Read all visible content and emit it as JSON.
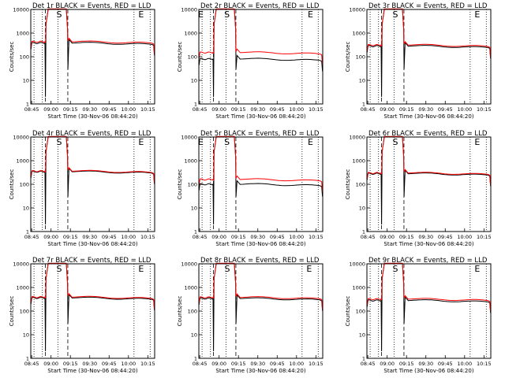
{
  "figure": {
    "xlabel": "Start Time (30-Nov-06 08:44:20)",
    "ylabel": "Counts/sec",
    "x_ticks": [
      "08:45",
      "09:00",
      "09:15",
      "09:30",
      "09:45",
      "10:00",
      "10:15"
    ],
    "y_ticks": [
      "1",
      "10",
      "100",
      "1000",
      "10000"
    ],
    "colors": {
      "events": "#000000",
      "lld": "#ff0000",
      "axes": "#000000",
      "background": "#ffffff"
    }
  },
  "chart_data": [
    {
      "type": "line",
      "title": "Det 1r BLACK = Events, RED = LLD",
      "markers": [
        "S",
        "E"
      ],
      "ylim": [
        1,
        10000
      ],
      "series": [
        {
          "name": "Events",
          "level": 380
        },
        {
          "name": "LLD",
          "level": 430
        }
      ]
    },
    {
      "type": "line",
      "title": "Det 2r BLACK = Events, RED = LLD",
      "markers": [
        "E",
        "S",
        "E"
      ],
      "ylim": [
        1,
        10000
      ],
      "series": [
        {
          "name": "Events",
          "level": 80
        },
        {
          "name": "LLD",
          "level": 150
        }
      ]
    },
    {
      "type": "line",
      "title": "Det 3r BLACK = Events, RED = LLD",
      "markers": [
        "S",
        "E"
      ],
      "ylim": [
        1,
        10000
      ],
      "series": [
        {
          "name": "Events",
          "level": 280
        },
        {
          "name": "LLD",
          "level": 310
        }
      ]
    },
    {
      "type": "line",
      "title": "Det 4r BLACK = Events, RED = LLD",
      "markers": [
        "S",
        "E"
      ],
      "ylim": [
        1,
        10000
      ],
      "series": [
        {
          "name": "Events",
          "level": 340
        },
        {
          "name": "LLD",
          "level": 360
        }
      ]
    },
    {
      "type": "line",
      "title": "Det 5r BLACK = Events, RED = LLD",
      "markers": [
        "E",
        "S",
        "E"
      ],
      "ylim": [
        1,
        10000
      ],
      "series": [
        {
          "name": "Events",
          "level": 100
        },
        {
          "name": "LLD",
          "level": 160
        }
      ]
    },
    {
      "type": "line",
      "title": "Det 6r BLACK = Events, RED = LLD",
      "markers": [
        "S",
        "E"
      ],
      "ylim": [
        1,
        10000
      ],
      "series": [
        {
          "name": "Events",
          "level": 280
        },
        {
          "name": "LLD",
          "level": 300
        }
      ]
    },
    {
      "type": "line",
      "title": "Det 7r BLACK = Events, RED = LLD",
      "markers": [
        "S",
        "E"
      ],
      "ylim": [
        1,
        10000
      ],
      "series": [
        {
          "name": "Events",
          "level": 360
        },
        {
          "name": "LLD",
          "level": 390
        }
      ]
    },
    {
      "type": "line",
      "title": "Det 8r BLACK = Events, RED = LLD",
      "markers": [
        "S",
        "E"
      ],
      "ylim": [
        1,
        10000
      ],
      "series": [
        {
          "name": "Events",
          "level": 340
        },
        {
          "name": "LLD",
          "level": 380
        }
      ]
    },
    {
      "type": "line",
      "title": "Det 9r BLACK = Events, RED = LLD",
      "markers": [
        "S",
        "E"
      ],
      "ylim": [
        1,
        10000
      ],
      "series": [
        {
          "name": "Events",
          "level": 280
        },
        {
          "name": "LLD",
          "level": 320
        }
      ]
    }
  ]
}
